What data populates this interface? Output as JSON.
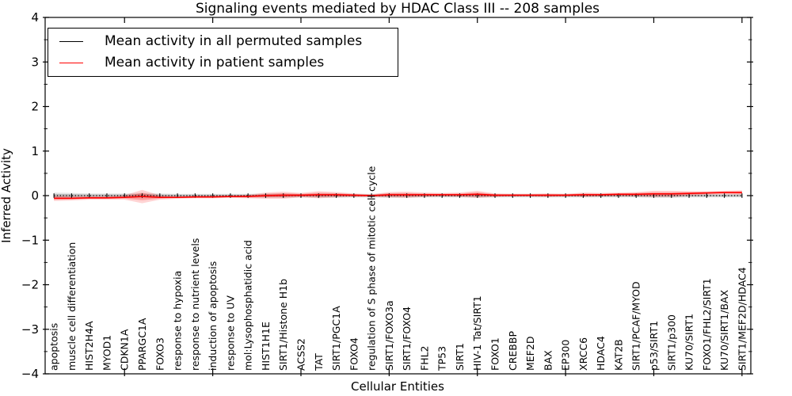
{
  "legend": {
    "items": [
      {
        "label": "Mean activity in all permuted samples",
        "color": "#000000"
      },
      {
        "label": "Mean activity in patient samples",
        "color": "#ff0000"
      }
    ]
  },
  "chart_data": {
    "type": "line",
    "title": "Signaling events mediated by HDAC Class III -- 208 samples",
    "xlabel": "Cellular Entities",
    "ylabel": "Inferred Activity",
    "ylim": [
      -4,
      4
    ],
    "yticks": [
      {
        "v": 4,
        "label": "4"
      },
      {
        "v": 3,
        "label": "3"
      },
      {
        "v": 2,
        "label": "2"
      },
      {
        "v": 1,
        "label": "1"
      },
      {
        "v": 0,
        "label": "0"
      },
      {
        "v": -1,
        "label": "−1"
      },
      {
        "v": -2,
        "label": "−2"
      },
      {
        "v": -3,
        "label": "−3"
      },
      {
        "v": -4,
        "label": "−4"
      }
    ],
    "y_minor_step": 0.5,
    "x_major_tick_indices": [
      4,
      9,
      14,
      19,
      24,
      29,
      34,
      39
    ],
    "grid": false,
    "legend_position": "upper left",
    "categories": [
      "apoptosis",
      "muscle cell differentiation",
      "HIST2H4A",
      "MYOD1",
      "CDKN1A",
      "PPARGC1A",
      "FOXO3",
      "response to hypoxia",
      "response to nutrient levels",
      "induction of apoptosis",
      "response to UV",
      "mol:Lysophosphatidic acid",
      "HIST1H1E",
      "SIRT1/Histone H1b",
      "ACSS2",
      "TAT",
      "SIRT1/PGC1A",
      "FOXO4",
      "regulation of S phase of mitotic cell cycle",
      "SIRT1/FOXO3a",
      "SIRT1/FOXO4",
      "FHL2",
      "TP53",
      "SIRT1",
      "HIV-1 Tat/SIRT1",
      "FOXO1",
      "CREBBP",
      "MEF2D",
      "BAX",
      "EP300",
      "XRCC6",
      "HDAC4",
      "KAT2B",
      "SIRT1/PCAF/MYOD",
      "p53/SIRT1",
      "SIRT1/p300",
      "KU70/SIRT1",
      "FOXO1/FHL2/SIRT1",
      "KU70/SIRT1/BAX",
      "SIRT1/MEF2D/HDAC4"
    ],
    "series": [
      {
        "name": "Mean activity in all permuted samples",
        "color": "#000000",
        "style": "dotted",
        "band_color": "#000000",
        "band_opacity": 0.1,
        "values": [
          0,
          0,
          0,
          0,
          0,
          0,
          0,
          0,
          0,
          0,
          0,
          0,
          0,
          0,
          0,
          0,
          0,
          0,
          0,
          0,
          0,
          0,
          0,
          0,
          0,
          0,
          0,
          0,
          0,
          0,
          0,
          0,
          0,
          0,
          0,
          0,
          0,
          0,
          0,
          0
        ],
        "band": [
          0.07,
          0.06,
          0.05,
          0.05,
          0.05,
          0.06,
          0.05,
          0.04,
          0.04,
          0.04,
          0.04,
          0.04,
          0.05,
          0.05,
          0.04,
          0.05,
          0.05,
          0.04,
          0.04,
          0.05,
          0.05,
          0.04,
          0.04,
          0.04,
          0.05,
          0.04,
          0.04,
          0.04,
          0.04,
          0.04,
          0.04,
          0.04,
          0.04,
          0.04,
          0.05,
          0.05,
          0.04,
          0.04,
          0.04,
          0.04
        ]
      },
      {
        "name": "Mean activity in patient samples",
        "color": "#ff0000",
        "style": "solid",
        "band_color": "#ff0000",
        "band_opacity": 0.17,
        "values": [
          -0.06,
          -0.06,
          -0.05,
          -0.05,
          -0.04,
          -0.02,
          -0.04,
          -0.04,
          -0.03,
          -0.03,
          -0.02,
          -0.02,
          0.0,
          0.01,
          0.01,
          0.02,
          0.02,
          0.01,
          0.0,
          0.02,
          0.02,
          0.02,
          0.02,
          0.02,
          0.03,
          0.01,
          0.01,
          0.01,
          0.01,
          0.01,
          0.02,
          0.02,
          0.03,
          0.03,
          0.04,
          0.04,
          0.05,
          0.06,
          0.07,
          0.07
        ],
        "band": [
          0.06,
          0.05,
          0.04,
          0.04,
          0.05,
          0.15,
          0.05,
          0.03,
          0.03,
          0.03,
          0.03,
          0.04,
          0.07,
          0.08,
          0.05,
          0.08,
          0.06,
          0.04,
          0.03,
          0.06,
          0.07,
          0.05,
          0.04,
          0.05,
          0.08,
          0.04,
          0.03,
          0.03,
          0.04,
          0.03,
          0.05,
          0.04,
          0.04,
          0.05,
          0.07,
          0.07,
          0.05,
          0.04,
          0.04,
          0.05
        ]
      }
    ]
  }
}
